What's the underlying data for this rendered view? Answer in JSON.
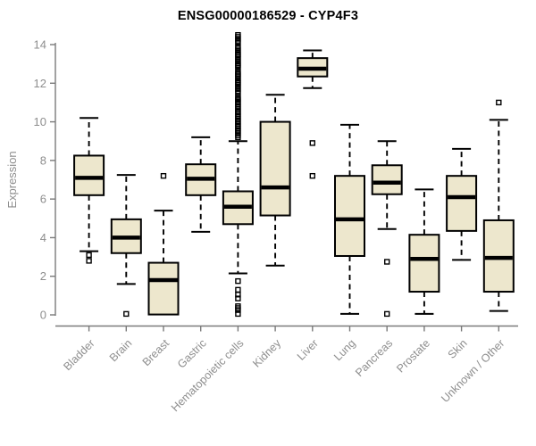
{
  "title": "ENSG00000186529 - CYP4F3",
  "chart_data": {
    "type": "boxplot",
    "title": "ENSG00000186529 - CYP4F3",
    "xlabel": "",
    "ylabel": "Expression",
    "ylim": [
      0,
      14
    ],
    "yticks": [
      0,
      2,
      4,
      6,
      8,
      10,
      12,
      14
    ],
    "grid": false,
    "legend": "none",
    "colors": {
      "box_fill": "#EDE7CD",
      "box_border": "#000000",
      "median": "#000000",
      "whisker": "#000000",
      "outlier": "#000000",
      "axis": "#7a7a7a",
      "tick_label": "#8e8e8e",
      "title": "#000000"
    },
    "categories": [
      "Bladder",
      "Brain",
      "Breast",
      "Gastric",
      "Hematopoietic cells",
      "Kidney",
      "Liver",
      "Lung",
      "Pancreas",
      "Prostate",
      "Skin",
      "Unknown / Other"
    ],
    "series": [
      {
        "name": "Bladder",
        "low": 3.3,
        "q1": 6.2,
        "median": 7.1,
        "q3": 8.25,
        "high": 10.2,
        "outliers": [
          3.1,
          2.8
        ]
      },
      {
        "name": "Brain",
        "low": 1.6,
        "q1": 3.2,
        "median": 4.0,
        "q3": 4.95,
        "high": 7.25,
        "outliers": [
          0.05
        ]
      },
      {
        "name": "Breast",
        "low": 0.02,
        "q1": 0.02,
        "median": 1.8,
        "q3": 2.7,
        "high": 5.4,
        "outliers": [
          7.2
        ]
      },
      {
        "name": "Gastric",
        "low": 4.3,
        "q1": 6.2,
        "median": 7.05,
        "q3": 7.8,
        "high": 9.2,
        "outliers": []
      },
      {
        "name": "Hematopoietic cells",
        "low": 2.15,
        "q1": 4.7,
        "median": 5.6,
        "q3": 6.4,
        "high": 9.0,
        "outliers": [
          14.5,
          14.4,
          14.3,
          14.2,
          14.1,
          13.9,
          13.8,
          13.7,
          13.6,
          13.5,
          13.45,
          13.35,
          13.25,
          13.15,
          13.05,
          12.95,
          12.9,
          12.8,
          12.6,
          12.5,
          12.45,
          12.35,
          12.25,
          12.15,
          12.05,
          12.0,
          11.9,
          11.8,
          11.7,
          11.6,
          11.5,
          11.3,
          11.2,
          11.15,
          11.05,
          11.0,
          10.9,
          10.8,
          10.75,
          10.65,
          10.55,
          10.5,
          10.4,
          10.3,
          10.25,
          10.15,
          10.05,
          10.0,
          9.9,
          9.8,
          9.75,
          9.65,
          9.55,
          9.5,
          9.4,
          9.3,
          9.2,
          1.75,
          1.3,
          1.05,
          0.85,
          0.45,
          0.35,
          0.25,
          0.05
        ]
      },
      {
        "name": "Kidney",
        "low": 2.55,
        "q1": 5.15,
        "median": 6.6,
        "q3": 10.0,
        "high": 11.4,
        "outliers": []
      },
      {
        "name": "Liver",
        "low": 11.75,
        "q1": 12.35,
        "median": 12.75,
        "q3": 13.3,
        "high": 13.7,
        "outliers": [
          8.9,
          7.2
        ]
      },
      {
        "name": "Lung",
        "low": 0.05,
        "q1": 3.05,
        "median": 4.95,
        "q3": 7.2,
        "high": 9.85,
        "outliers": []
      },
      {
        "name": "Pancreas",
        "low": 4.45,
        "q1": 6.25,
        "median": 6.85,
        "q3": 7.75,
        "high": 9.0,
        "outliers": [
          2.75,
          0.05
        ]
      },
      {
        "name": "Prostate",
        "low": 0.05,
        "q1": 1.2,
        "median": 2.9,
        "q3": 4.15,
        "high": 6.5,
        "outliers": []
      },
      {
        "name": "Skin",
        "low": 2.85,
        "q1": 4.35,
        "median": 6.1,
        "q3": 7.2,
        "high": 8.6,
        "outliers": []
      },
      {
        "name": "Unknown / Other",
        "low": 0.2,
        "q1": 1.2,
        "median": 2.95,
        "q3": 4.9,
        "high": 10.1,
        "outliers": [
          11.0
        ]
      }
    ]
  }
}
